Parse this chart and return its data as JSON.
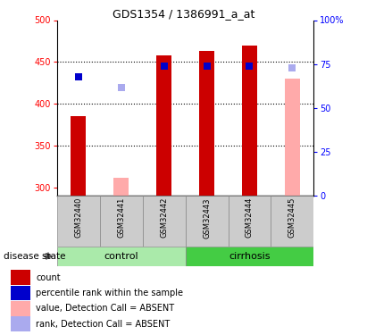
{
  "title": "GDS1354 / 1386991_a_at",
  "samples": [
    "GSM32440",
    "GSM32441",
    "GSM32442",
    "GSM32443",
    "GSM32444",
    "GSM32445"
  ],
  "ylim_left": [
    290,
    500
  ],
  "ylim_right": [
    0,
    100
  ],
  "yticks_left": [
    300,
    350,
    400,
    450,
    500
  ],
  "yticks_right": [
    0,
    25,
    50,
    75,
    100
  ],
  "ytick_right_labels": [
    "0",
    "25",
    "50",
    "75",
    "100%"
  ],
  "bar_values": [
    385,
    null,
    458,
    463,
    470,
    null
  ],
  "bar_color": "#cc0000",
  "absent_value_bars": [
    null,
    312,
    null,
    null,
    null,
    430
  ],
  "absent_rank_dots": [
    null,
    420,
    null,
    null,
    null,
    443
  ],
  "rank_dots": [
    432,
    null,
    445,
    445,
    445,
    null
  ],
  "control_color": "#aaeaaa",
  "cirrhosis_color": "#44cc44",
  "absent_bar_color": "#ffaaaa",
  "absent_rank_color": "#aaaaee",
  "rank_dot_color": "#0000cc",
  "sample_bg_color": "#cccccc",
  "gridline_y": [
    350,
    400,
    450
  ],
  "legend_items": [
    {
      "color": "#cc0000",
      "label": "count"
    },
    {
      "color": "#0000cc",
      "label": "percentile rank within the sample"
    },
    {
      "color": "#ffaaaa",
      "label": "value, Detection Call = ABSENT"
    },
    {
      "color": "#aaaaee",
      "label": "rank, Detection Call = ABSENT"
    }
  ]
}
